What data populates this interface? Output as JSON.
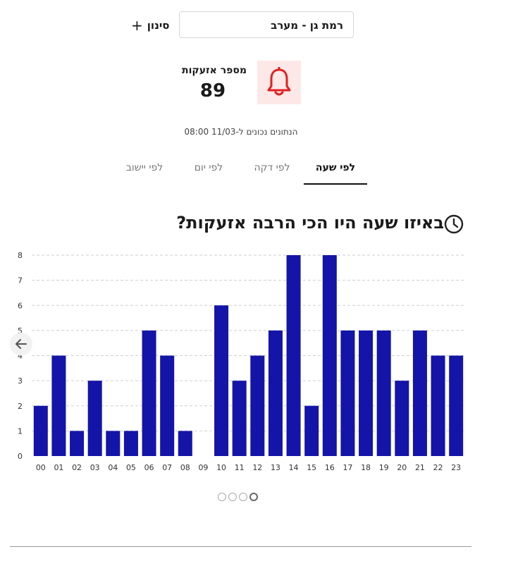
{
  "filter": {
    "location_value": "רמת גן - מערב",
    "filter_label": "סינון"
  },
  "summary": {
    "alerts_label": "מספר אזעקות",
    "alerts_count": "89",
    "updated_text": "הנתונים נכונים ל-11/03 08:00"
  },
  "tabs": [
    {
      "label": "לפי שעה",
      "active": true
    },
    {
      "label": "לפי דקה",
      "active": false
    },
    {
      "label": "לפי יום",
      "active": false
    },
    {
      "label": "לפי יישוב",
      "active": false
    }
  ],
  "colors": {
    "bar": "#1414a8",
    "bell": "#e02020",
    "bell_bg": "#fde8e8",
    "grid": "#cfcfcf"
  },
  "icons": {
    "filter": "plus-icon",
    "alerts": "bell-icon",
    "chart_title": "clock-icon",
    "carousel_prev": "arrow-left-icon"
  },
  "chart_data": {
    "type": "bar",
    "title": "באיזו שעה היו הכי הרבה אזעקות?",
    "categories": [
      "00",
      "01",
      "02",
      "03",
      "04",
      "05",
      "06",
      "07",
      "08",
      "09",
      "10",
      "11",
      "12",
      "13",
      "14",
      "15",
      "16",
      "17",
      "18",
      "19",
      "20",
      "21",
      "22",
      "23"
    ],
    "values": [
      2,
      4,
      1,
      3,
      1,
      1,
      5,
      4,
      1,
      0,
      6,
      3,
      4,
      5,
      8,
      2,
      8,
      5,
      5,
      5,
      3,
      5,
      4,
      4
    ],
    "ylim": [
      0,
      8
    ],
    "yticks": [
      0,
      1,
      2,
      3,
      4,
      5,
      6,
      7,
      8
    ],
    "grid": true,
    "xlabel": "",
    "ylabel": ""
  },
  "carousel": {
    "pages": 4,
    "active_index": 3
  }
}
